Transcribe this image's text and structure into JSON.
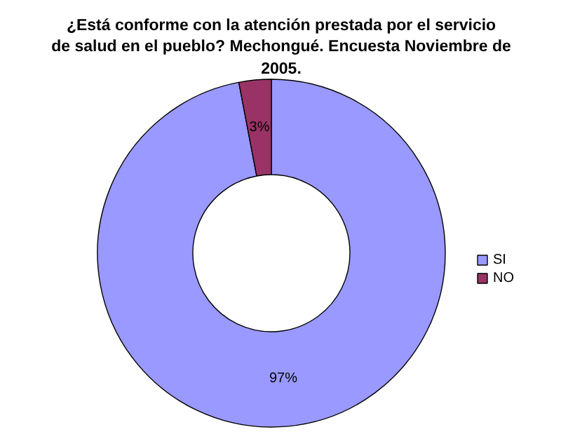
{
  "chart_data": {
    "type": "donut",
    "title": "¿Está conforme con la atención prestada por el servicio de salud en el pueblo? Mechongué. Encuesta Noviembre de 2005.",
    "categories": [
      "SI",
      "NO"
    ],
    "values": [
      97,
      3
    ],
    "colors": [
      "#9999ff",
      "#993366"
    ],
    "value_labels": [
      "97%",
      "3%"
    ],
    "legend": "right"
  }
}
